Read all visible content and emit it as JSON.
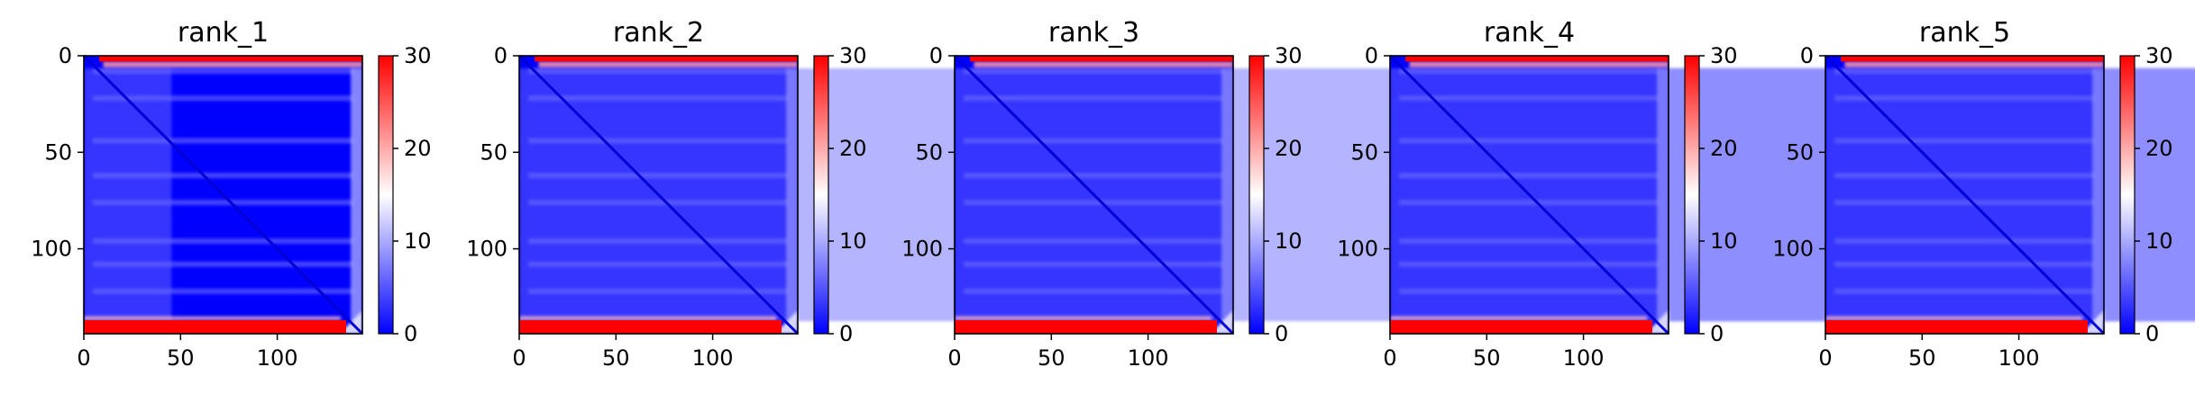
{
  "chart_data": [
    {
      "type": "heatmap",
      "title": "rank_1",
      "matrix_size": 144,
      "xlim": [
        0,
        144
      ],
      "ylim": [
        144,
        0
      ],
      "xticks": [
        0,
        50,
        100
      ],
      "yticks": [
        0,
        50,
        100
      ],
      "colorbar": {
        "vmin": 0,
        "vmax": 30,
        "ticks": [
          0,
          10,
          20,
          30
        ],
        "colormap": "bwr"
      },
      "band_rows": [
        8,
        22,
        44,
        62,
        76,
        96,
        108,
        122
      ],
      "grid": false
    },
    {
      "type": "heatmap",
      "title": "rank_2",
      "matrix_size": 144,
      "xlim": [
        0,
        144
      ],
      "ylim": [
        144,
        0
      ],
      "xticks": [
        0,
        50,
        100
      ],
      "yticks": [
        0,
        50,
        100
      ],
      "colorbar": {
        "vmin": 0,
        "vmax": 30,
        "ticks": [
          0,
          10,
          20,
          30
        ],
        "colormap": "bwr"
      },
      "band_rows": [
        8,
        22,
        44,
        62,
        76,
        96,
        108,
        122
      ],
      "grid": false
    },
    {
      "type": "heatmap",
      "title": "rank_3",
      "matrix_size": 144,
      "xlim": [
        0,
        144
      ],
      "ylim": [
        144,
        0
      ],
      "xticks": [
        0,
        50,
        100
      ],
      "yticks": [
        0,
        50,
        100
      ],
      "colorbar": {
        "vmin": 0,
        "vmax": 30,
        "ticks": [
          0,
          10,
          20,
          30
        ],
        "colormap": "bwr"
      },
      "band_rows": [
        8,
        22,
        44,
        62,
        76,
        96,
        108,
        122
      ],
      "grid": false
    },
    {
      "type": "heatmap",
      "title": "rank_4",
      "matrix_size": 144,
      "xlim": [
        0,
        144
      ],
      "ylim": [
        144,
        0
      ],
      "xticks": [
        0,
        50,
        100
      ],
      "yticks": [
        0,
        50,
        100
      ],
      "colorbar": {
        "vmin": 0,
        "vmax": 30,
        "ticks": [
          0,
          10,
          20,
          30
        ],
        "colormap": "bwr"
      },
      "band_rows": [
        8,
        22,
        44,
        62,
        76,
        96,
        108,
        122
      ],
      "grid": false
    },
    {
      "type": "heatmap",
      "title": "rank_5",
      "matrix_size": 144,
      "xlim": [
        0,
        144
      ],
      "ylim": [
        144,
        0
      ],
      "xticks": [
        0,
        50,
        100
      ],
      "yticks": [
        0,
        50,
        100
      ],
      "colorbar": {
        "vmin": 0,
        "vmax": 30,
        "ticks": [
          0,
          10,
          20,
          30
        ],
        "colormap": "bwr"
      },
      "band_rows": [
        8,
        22,
        44,
        62,
        76,
        96,
        108,
        122
      ],
      "grid": false
    }
  ],
  "colors": {
    "low": "#0000ff",
    "mid": "#ffffff",
    "high": "#ff0000"
  }
}
